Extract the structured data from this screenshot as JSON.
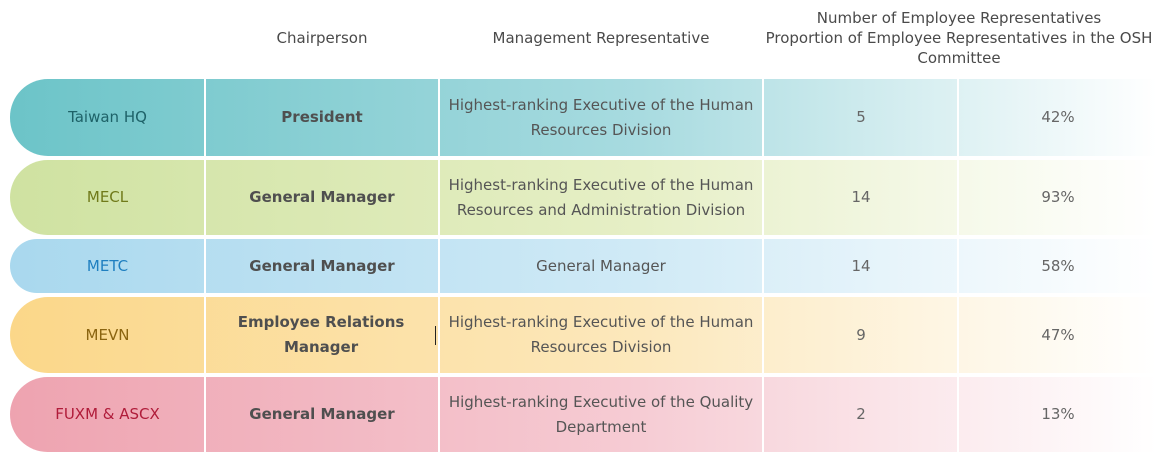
{
  "headers": {
    "chair": "Chairperson",
    "mgmt": "Management Representative",
    "count_line1": "Number of Employee Representatives",
    "prop_line": "Proportion of Employee Representatives in the OSH Committee"
  },
  "rows": [
    {
      "name": "Taiwan HQ",
      "chair": "President",
      "mgmt": "Highest-ranking Executive of the Human Resources Division",
      "count": "5",
      "proportion": "42%",
      "color_start": "#6cc4c8",
      "color_mid": "#a8dbe0",
      "name_color": "#1e6268"
    },
    {
      "name": "MECL",
      "chair": "General Manager",
      "mgmt": "Highest-ranking Executive of the Human Resources and Administration Division",
      "count": "14",
      "proportion": "93%",
      "color_start": "#cfe2a1",
      "color_mid": "#e6efc6",
      "name_color": "#707a1a"
    },
    {
      "name": "METC",
      "chair": "General Manager",
      "mgmt": "General Manager",
      "count": "14",
      "proportion": "58%",
      "color_start": "#a9d8ee",
      "color_mid": "#d0eaf6",
      "name_color": "#1f7fc0"
    },
    {
      "name": "MEVN",
      "chair": "Employee Relations Manager",
      "mgmt": "Highest-ranking Executive of the Human Resources Division",
      "count": "9",
      "proportion": "47%",
      "color_start": "#fbd789",
      "color_mid": "#fce8bc",
      "name_color": "#8a6410"
    },
    {
      "name": "FUXM & ASCX",
      "chair": "General Manager",
      "mgmt": "Highest-ranking Executive of the Quality Department",
      "count": "2",
      "proportion": "13%",
      "color_start": "#eea3b0",
      "color_mid": "#f6ccd4",
      "name_color": "#b01c3a"
    }
  ]
}
